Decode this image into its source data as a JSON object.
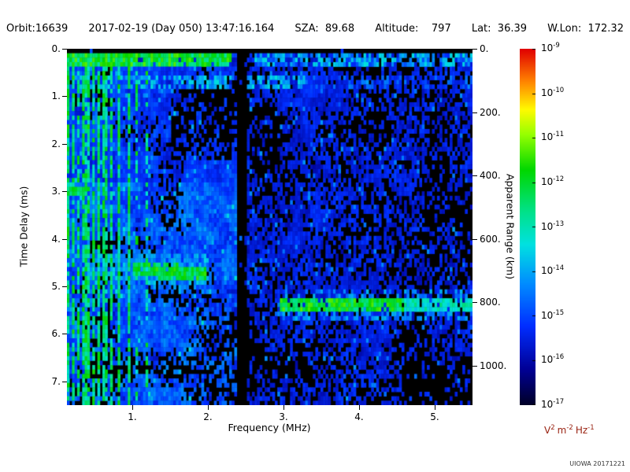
{
  "header": {
    "items": [
      "Orbit:16639",
      "2017-02-19 (Day 050) 13:47:16.164",
      "SZA:  89.68",
      "Altitude:    797",
      "Lat:  36.39",
      "W.Lon:  172.32"
    ]
  },
  "credit": "UIOWA 20171221",
  "chart_data": {
    "type": "heatmap",
    "description": "Radar sounder ionogram: received spectral density versus sounding frequency and echo time delay",
    "xlabel": "Frequency (MHz)",
    "ylabel_left": "Time Delay (ms)",
    "ylabel_right": "Apparent Range (km)",
    "x_range_mhz": [
      0.135,
      5.5
    ],
    "y_range_ms": [
      0,
      7.5
    ],
    "x_ticks": [
      1,
      2,
      3,
      4,
      5
    ],
    "x_tick_labels": [
      "1.",
      "2.",
      "3.",
      "4.",
      "5."
    ],
    "y_ticks_ms": [
      0,
      1,
      2,
      3,
      4,
      5,
      6,
      7
    ],
    "y_tick_labels": [
      "0.",
      "1.",
      "2.",
      "3.",
      "4.",
      "5.",
      "6.",
      "7."
    ],
    "right_ticks_km": [
      0,
      200,
      400,
      600,
      800,
      1000
    ],
    "right_tick_labels": [
      "0.",
      "200.",
      "400.",
      "600.",
      "800.",
      "1000."
    ],
    "range_km_per_ms": 150,
    "grid": false,
    "colorbar": {
      "scale": "log10",
      "tick_label_base": "10",
      "tick_exponents": [
        -9,
        -10,
        -11,
        -12,
        -13,
        -14,
        -15,
        -16,
        -17
      ],
      "units_parts": [
        [
          "V",
          "2"
        ],
        [
          "m",
          "-2"
        ],
        [
          "Hz",
          "-1"
        ]
      ],
      "stops": [
        [
          0.0,
          [
            0,
            0,
            40
          ]
        ],
        [
          0.1,
          [
            0,
            0,
            150
          ]
        ],
        [
          0.22,
          [
            0,
            45,
            255
          ]
        ],
        [
          0.34,
          [
            0,
            140,
            255
          ]
        ],
        [
          0.45,
          [
            0,
            225,
            225
          ]
        ],
        [
          0.55,
          [
            0,
            225,
            130
          ]
        ],
        [
          0.66,
          [
            0,
            215,
            0
          ]
        ],
        [
          0.76,
          [
            150,
            255,
            0
          ]
        ],
        [
          0.83,
          [
            255,
            250,
            0
          ]
        ],
        [
          0.91,
          [
            255,
            130,
            0
          ]
        ],
        [
          1.0,
          [
            225,
            0,
            0
          ]
        ]
      ]
    },
    "noise": {
      "split_mhz": 2.38,
      "left": {
        "p": 0.78,
        "v": [
          0.08,
          0.3
        ]
      },
      "right": {
        "p": 0.5,
        "v": [
          0.07,
          0.26
        ]
      },
      "left_low_freq": {
        "below_mhz": 1.0,
        "p": 0.85,
        "v_hi": 0.34
      },
      "bottom_boost": {
        "delay_from_ms": 2.8,
        "p": 0.85,
        "v_hi": 0.38
      },
      "sparkle_p": 0.05,
      "sparkle_add": 0.13
    },
    "features": [
      {
        "id": "top-black-gap",
        "type": "blank",
        "delay_ms": [
          0,
          0.13
        ]
      },
      {
        "id": "transmit-band",
        "type": "hband",
        "delay_ms": [
          0.14,
          0.42
        ],
        "freq_mhz": [
          0.135,
          2.3
        ],
        "v": [
          0.5,
          0.72
        ],
        "p": 0.95
      },
      {
        "id": "transmit-band-right",
        "type": "hband",
        "delay_ms": [
          0.14,
          0.4
        ],
        "freq_mhz": [
          2.6,
          5.5
        ],
        "v": [
          0.24,
          0.46
        ],
        "p": 0.65
      },
      {
        "id": "second-band",
        "type": "hband",
        "delay_ms": [
          0.52,
          0.8
        ],
        "freq_mhz": [
          0.25,
          2.38
        ],
        "v": [
          0.28,
          0.46
        ],
        "p": 0.6
      },
      {
        "id": "second-band-b",
        "type": "hband",
        "delay_ms": [
          0.52,
          0.8
        ],
        "freq_mhz": [
          2.52,
          3.3
        ],
        "v": [
          0.28,
          0.46
        ],
        "p": 0.55
      },
      {
        "id": "second-band-right",
        "type": "hband",
        "delay_ms": [
          0.52,
          0.8
        ],
        "freq_mhz": [
          3.3,
          5.5
        ],
        "v": [
          0.18,
          0.32
        ],
        "p": 0.35
      },
      {
        "id": "left-line-3ms",
        "type": "hband",
        "delay_ms": [
          2.92,
          3.1
        ],
        "freq_mhz": [
          0.135,
          0.42
        ],
        "v": [
          0.5,
          0.66
        ],
        "p": 0.9
      },
      {
        "id": "echo-halo",
        "type": "hband",
        "delay_ms": [
          4.3,
          5.0
        ],
        "freq_mhz": [
          0.4,
          2.0
        ],
        "v": [
          0.28,
          0.44
        ],
        "p": 0.5
      },
      {
        "id": "ionospheric-echo-trace",
        "type": "trace",
        "freq_mhz": [
          1.02,
          1.98
        ],
        "delay_ms": 4.62,
        "tilt_ms_per_mhz": 0.15,
        "halfwidth_ms": 0.16,
        "v": [
          0.52,
          0.7
        ],
        "p": 0.92
      },
      {
        "id": "ground-echo-trace",
        "type": "trace",
        "freq_mhz": [
          2.95,
          5.5
        ],
        "delay_ms": 5.42,
        "tilt_ms_per_mhz": 0,
        "halfwidth_ms": 0.13,
        "v": [
          0.52,
          0.72
        ],
        "p": 0.9,
        "fade_above_mhz": 4.6
      },
      {
        "id": "plasma-harmonic-lines",
        "type": "vlines",
        "freqs_mhz": [
          0.156,
          0.218,
          0.281,
          0.343,
          0.406,
          0.479,
          0.552,
          0.635,
          0.729,
          0.833,
          0.947,
          1.07,
          1.2
        ],
        "width_mhz": 0.02,
        "strong_below_mhz": 1.0,
        "v": [
          0.46,
          0.68
        ],
        "p": 0.8
      },
      {
        "id": "dark-column",
        "type": "suppress",
        "freq_mhz": [
          2.38,
          2.52
        ],
        "factor": 0.07
      },
      {
        "id": "dark-patch-upper",
        "type": "suppress",
        "freq_mhz": [
          1.5,
          2.3
        ],
        "delay_ms": [
          0.85,
          2.3
        ],
        "factor": 0.4
      },
      {
        "id": "corner-dark",
        "type": "suppress",
        "freq_mhz": [
          4.6,
          5.5
        ],
        "delay_ms": [
          6.6,
          7.5
        ],
        "factor": 0.3
      }
    ],
    "render": {
      "seed": 20171221,
      "nf": 160,
      "nt": 80
    }
  }
}
